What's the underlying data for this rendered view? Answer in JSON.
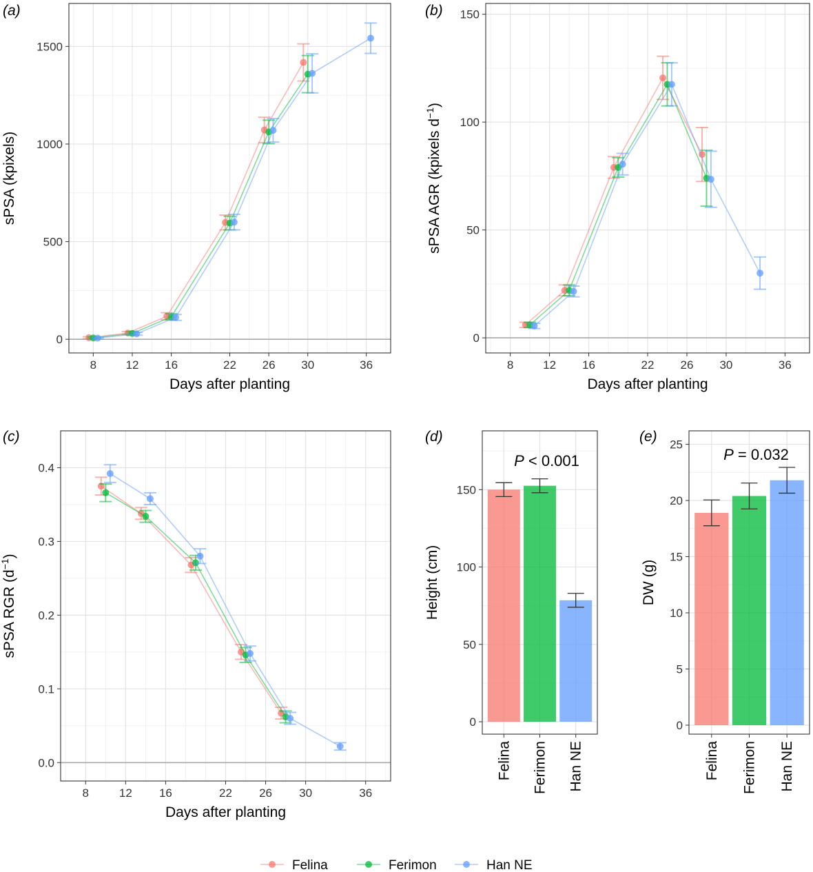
{
  "colors": {
    "Felina": "#F8766D",
    "Ferimon": "#00BA38",
    "Han NE": "#619CFF"
  },
  "legend": {
    "items": [
      "Felina",
      "Ferimon",
      "Han NE"
    ]
  },
  "chart_data": [
    {
      "id": "a",
      "letter": "a",
      "type": "line",
      "xlabel": "Days after planting",
      "ylabel": "sPSA  (kpixels)",
      "xlim": [
        5.5,
        38.5
      ],
      "ylim": [
        -70,
        1720
      ],
      "xticks": [
        8,
        12,
        16,
        22,
        26,
        30,
        36
      ],
      "yticks": [
        0,
        500,
        1000,
        1500
      ],
      "series": [
        {
          "name": "Felina",
          "x": [
            8,
            12,
            16,
            22,
            26,
            30
          ],
          "y": [
            8,
            32,
            118,
            598,
            1072,
            1418
          ],
          "err": [
            5,
            8,
            18,
            38,
            65,
            95
          ]
        },
        {
          "name": "Ferimon",
          "x": [
            8,
            12,
            16,
            22,
            26,
            30
          ],
          "y": [
            7,
            30,
            115,
            595,
            1062,
            1358
          ],
          "err": [
            5,
            8,
            16,
            35,
            60,
            95
          ]
        },
        {
          "name": "Han NE",
          "x": [
            8,
            12,
            16,
            22,
            26,
            30,
            36
          ],
          "y": [
            6,
            28,
            112,
            600,
            1070,
            1362,
            1542
          ],
          "err": [
            4,
            7,
            15,
            40,
            60,
            100,
            78
          ]
        }
      ]
    },
    {
      "id": "b",
      "letter": "b",
      "type": "line",
      "xlabel": "Days after planting",
      "ylabel": "sPSA AGR  (kpixels d",
      "ylabel_sup": "−1",
      "ylabel_end": ")",
      "xlim": [
        5.5,
        38.5
      ],
      "ylim": [
        -7,
        155
      ],
      "xticks": [
        8,
        12,
        16,
        22,
        26,
        30,
        36
      ],
      "yticks": [
        0,
        50,
        100,
        150
      ],
      "series": [
        {
          "name": "Felina",
          "x": [
            10,
            14,
            19,
            24,
            28
          ],
          "y": [
            6,
            22,
            79,
            120.5,
            85
          ],
          "err": [
            1.2,
            2.5,
            5,
            10,
            12.5
          ]
        },
        {
          "name": "Ferimon",
          "x": [
            10,
            14,
            19,
            24,
            28
          ],
          "y": [
            6,
            22,
            79,
            117.5,
            74
          ],
          "err": [
            1.2,
            2.5,
            4.5,
            10,
            13
          ]
        },
        {
          "name": "Han NE",
          "x": [
            10,
            14,
            19,
            24,
            28,
            33
          ],
          "y": [
            5.5,
            21.5,
            80.5,
            117.5,
            73.5,
            30
          ],
          "err": [
            1.2,
            2.5,
            5,
            10,
            13,
            7.5
          ]
        }
      ]
    },
    {
      "id": "c",
      "letter": "c",
      "type": "line",
      "xlabel": "Days after planting",
      "ylabel": "sPSA RGR  (d",
      "ylabel_sup": "−1",
      "ylabel_end": ")",
      "xlim": [
        5.5,
        38.5
      ],
      "ylim": [
        -0.025,
        0.45
      ],
      "xticks": [
        8,
        12,
        16,
        22,
        26,
        30,
        36
      ],
      "yticks": [
        0.0,
        0.1,
        0.2,
        0.3,
        0.4
      ],
      "series": [
        {
          "name": "Felina",
          "x": [
            10,
            14,
            19,
            24,
            28
          ],
          "y": [
            0.375,
            0.338,
            0.268,
            0.15,
            0.067
          ],
          "err": [
            0.012,
            0.008,
            0.01,
            0.01,
            0.008
          ]
        },
        {
          "name": "Ferimon",
          "x": [
            10,
            14,
            19,
            24,
            28
          ],
          "y": [
            0.366,
            0.334,
            0.271,
            0.146,
            0.062
          ],
          "err": [
            0.012,
            0.008,
            0.01,
            0.01,
            0.008
          ]
        },
        {
          "name": "Han NE",
          "x": [
            10,
            14,
            19,
            24,
            28,
            33
          ],
          "y": [
            0.392,
            0.358,
            0.28,
            0.148,
            0.06,
            0.022
          ],
          "err": [
            0.012,
            0.008,
            0.01,
            0.01,
            0.008,
            0.005
          ]
        }
      ]
    },
    {
      "id": "d",
      "letter": "d",
      "type": "bar",
      "ylabel": "Height  (cm)",
      "annotation_p": "P",
      "annotation_rest": " < 0.001",
      "ylim": [
        -8,
        188
      ],
      "yticks": [
        0,
        50,
        100,
        150
      ],
      "categories": [
        "Felina",
        "Ferimon",
        "Han NE"
      ],
      "values": [
        150,
        152.5,
        78.5
      ],
      "err": [
        4.5,
        4.5,
        4.5
      ]
    },
    {
      "id": "e",
      "letter": "e",
      "type": "bar",
      "ylabel": "DW  (g)",
      "annotation_p": "P",
      "annotation_rest": " = 0.032",
      "ylim": [
        -0.8,
        26.2
      ],
      "yticks": [
        0,
        5,
        10,
        15,
        20,
        25
      ],
      "categories": [
        "Felina",
        "Ferimon",
        "Han NE"
      ],
      "values": [
        18.9,
        20.4,
        21.8
      ],
      "err": [
        1.15,
        1.15,
        1.15
      ]
    }
  ]
}
